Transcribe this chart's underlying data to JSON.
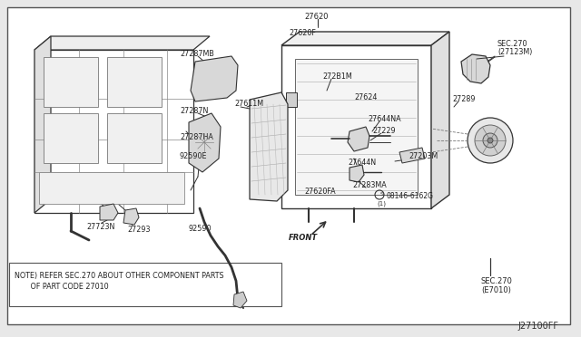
{
  "bg_color": "#ffffff",
  "outer_bg": "#e8e8e8",
  "line_color": "#333333",
  "text_color": "#222222",
  "diagram_id": "J27100FF",
  "note_line1": "NOTE) REFER SEC.270 ABOUT OTHER COMPONENT PARTS",
  "note_line2": "       OF PART CODE 27010",
  "sec270_top_line1": "SEC.270",
  "sec270_top_line2": "(27123M)",
  "sec270_bot_line1": "SEC.270",
  "sec270_bot_line2": "(E7010)",
  "label_27620": "27620",
  "label_27620F": "27620F",
  "label_27287MB": "27287MB",
  "label_27611M": "27611M",
  "label_27287N": "27287N",
  "label_27287HA": "27287HA",
  "label_92590E": "92590E",
  "label_27723N": "27723N",
  "label_27293": "27293",
  "label_92590": "92590",
  "label_272B1M": "272B1M",
  "label_27624": "27624",
  "label_27644NA": "27644NA",
  "label_27229": "27229",
  "label_27644N": "27644N",
  "label_27283MA": "27283MA",
  "label_27620FA": "27620FA",
  "label_08146": "08146-6162G",
  "label_27203M": "27203M",
  "label_27289": "27289",
  "label_FRONT": "FRONT"
}
